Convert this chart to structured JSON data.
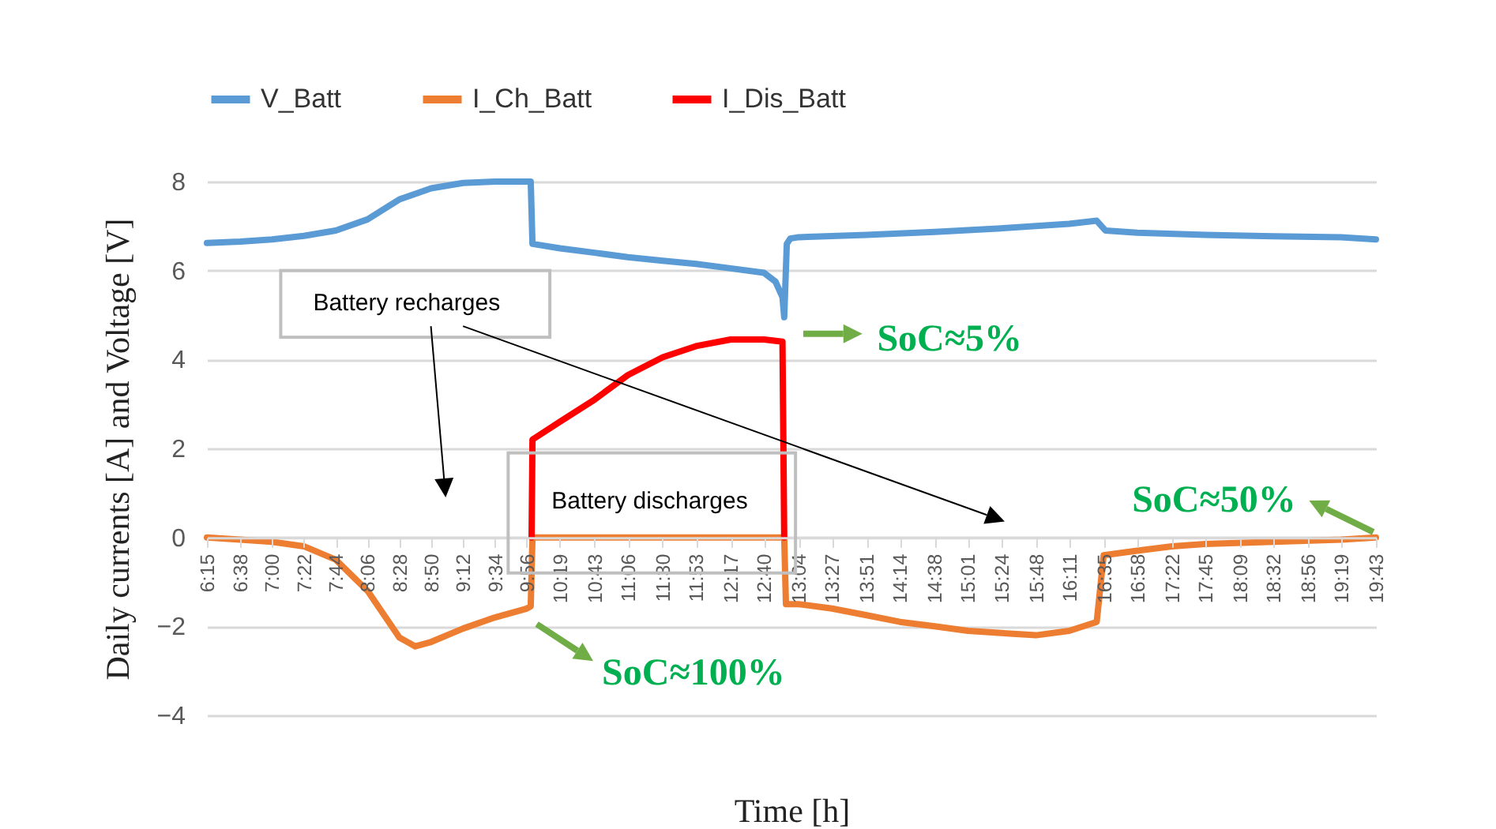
{
  "chart_data": {
    "type": "line",
    "xlabel": "Time [h]",
    "ylabel": "Daily currents [A] and Voltage [V]",
    "xlim": [
      6.25,
      19.7167
    ],
    "ylim": [
      -4,
      8
    ],
    "xticks": [
      {
        "value": 6.25,
        "label": "6:15"
      },
      {
        "value": 6.6333,
        "label": "6:38"
      },
      {
        "value": 7.0,
        "label": "7:00"
      },
      {
        "value": 7.3667,
        "label": "7:22"
      },
      {
        "value": 7.7333,
        "label": "7:44"
      },
      {
        "value": 8.1,
        "label": "8:06"
      },
      {
        "value": 8.4667,
        "label": "8:28"
      },
      {
        "value": 8.8333,
        "label": "8:50"
      },
      {
        "value": 9.2,
        "label": "9:12"
      },
      {
        "value": 9.5667,
        "label": "9:34"
      },
      {
        "value": 9.9333,
        "label": "9:56"
      },
      {
        "value": 10.3167,
        "label": "10:19"
      },
      {
        "value": 10.7167,
        "label": "10:43"
      },
      {
        "value": 11.1,
        "label": "11:06"
      },
      {
        "value": 11.5,
        "label": "11:30"
      },
      {
        "value": 11.8833,
        "label": "11:53"
      },
      {
        "value": 12.2833,
        "label": "12:17"
      },
      {
        "value": 12.6667,
        "label": "12:40"
      },
      {
        "value": 13.0667,
        "label": "13:04"
      },
      {
        "value": 13.45,
        "label": "13:27"
      },
      {
        "value": 13.85,
        "label": "13:51"
      },
      {
        "value": 14.2333,
        "label": "14:14"
      },
      {
        "value": 14.6333,
        "label": "14:38"
      },
      {
        "value": 15.0167,
        "label": "15:01"
      },
      {
        "value": 15.4,
        "label": "15:24"
      },
      {
        "value": 15.8,
        "label": "15:48"
      },
      {
        "value": 16.1833,
        "label": "16:11"
      },
      {
        "value": 16.5833,
        "label": "16:35"
      },
      {
        "value": 16.9667,
        "label": "16:58"
      },
      {
        "value": 17.3667,
        "label": "17:22"
      },
      {
        "value": 17.75,
        "label": "17:45"
      },
      {
        "value": 18.15,
        "label": "18:09"
      },
      {
        "value": 18.5333,
        "label": "18:32"
      },
      {
        "value": 18.9333,
        "label": "18:56"
      },
      {
        "value": 19.3167,
        "label": "19:19"
      },
      {
        "value": 19.7167,
        "label": "19:43"
      }
    ],
    "yticks": [
      {
        "value": -4,
        "label": "−4"
      },
      {
        "value": -2,
        "label": "−2"
      },
      0,
      2,
      4,
      6,
      8
    ],
    "grid": "y",
    "legend": "top",
    "series": [
      {
        "name": "V_Batt",
        "color": "#5b9bd5",
        "x": [
          6.25,
          6.6333,
          7.0,
          7.3667,
          7.7333,
          8.1,
          8.4667,
          8.8333,
          9.2,
          9.5667,
          9.98,
          10.0,
          10.3167,
          10.7167,
          11.1,
          11.5,
          11.8833,
          12.2833,
          12.6667,
          12.8,
          12.88,
          12.9,
          12.93,
          12.97,
          13.0667,
          13.85,
          14.6333,
          15.4,
          16.1833,
          16.5,
          16.6,
          16.9667,
          17.75,
          18.5333,
          19.3167,
          19.7167
        ],
        "values": [
          6.62,
          6.65,
          6.7,
          6.78,
          6.9,
          7.15,
          7.6,
          7.85,
          7.97,
          8.0,
          8.0,
          6.6,
          6.5,
          6.4,
          6.3,
          6.22,
          6.15,
          6.05,
          5.95,
          5.75,
          5.4,
          4.95,
          6.6,
          6.72,
          6.75,
          6.8,
          6.87,
          6.95,
          7.05,
          7.12,
          6.9,
          6.85,
          6.8,
          6.77,
          6.75,
          6.7
        ]
      },
      {
        "name": "I_Ch_Batt",
        "color": "#ed7d31",
        "x": [
          6.25,
          6.6333,
          7.0,
          7.3667,
          7.7333,
          8.1,
          8.4667,
          8.65,
          8.8333,
          9.2,
          9.5667,
          9.9333,
          9.98,
          10.0,
          12.9,
          12.92,
          13.0667,
          13.45,
          13.85,
          14.2333,
          14.6333,
          15.0167,
          15.4,
          15.8,
          16.1833,
          16.5,
          16.58,
          16.9667,
          17.3667,
          17.75,
          18.5333,
          19.3167,
          19.7167
        ],
        "values": [
          0,
          -0.05,
          -0.1,
          -0.2,
          -0.5,
          -1.2,
          -2.25,
          -2.45,
          -2.35,
          -2.05,
          -1.8,
          -1.6,
          -1.55,
          0,
          0,
          -1.5,
          -1.5,
          -1.6,
          -1.75,
          -1.9,
          -2.0,
          -2.1,
          -2.15,
          -2.2,
          -2.1,
          -1.9,
          -0.4,
          -0.3,
          -0.2,
          -0.15,
          -0.1,
          -0.05,
          0
        ]
      },
      {
        "name": "I_Dis_Batt",
        "color": "#ff0000",
        "x": [
          9.99,
          10.0,
          10.3167,
          10.7167,
          11.1,
          11.5,
          11.8833,
          12.2833,
          12.6667,
          12.88,
          12.9
        ],
        "values": [
          0,
          2.2,
          2.6,
          3.1,
          3.65,
          4.05,
          4.3,
          4.45,
          4.45,
          4.4,
          0
        ]
      }
    ],
    "annotations": [
      "Battery recharges",
      "Battery discharges",
      {
        "text": "SoC≈100%",
        "x": 9.98,
        "y": -1.55
      },
      {
        "text": "SoC≈5%",
        "x": 12.88,
        "y": 4.4
      },
      {
        "text": "SoC≈50%",
        "x": 19.7167,
        "y": 0
      }
    ]
  }
}
